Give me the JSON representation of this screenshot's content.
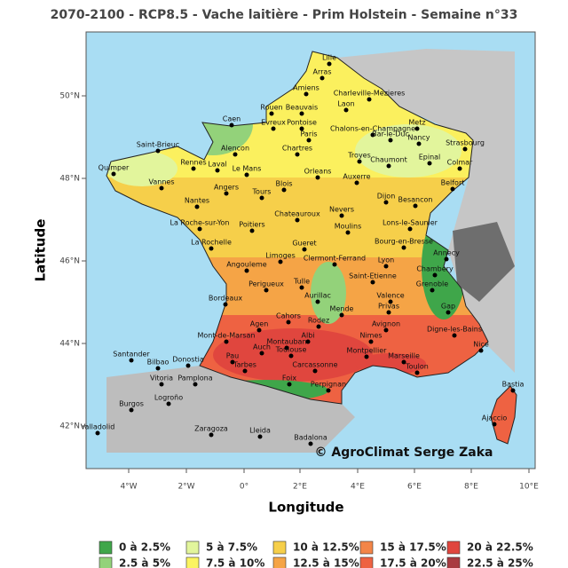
{
  "title": "2070-2100 - RCP8.5 - Vache laitière - Prim Holstein - Semaine n°33",
  "axes": {
    "x_label": "Longitude",
    "y_label": "Latitude",
    "x_ticks": [
      "4°W",
      "2°W",
      "0°",
      "2°E",
      "4°E",
      "6°E",
      "8°E",
      "10°E"
    ],
    "y_ticks": [
      "42°N",
      "44°N",
      "46°N",
      "48°N",
      "50°N"
    ]
  },
  "cities": [
    "Lille",
    "Arras",
    "Amiens",
    "Charleville-Mezieres",
    "Laon",
    "Caen",
    "Rouen",
    "Beauvais",
    "Evreux",
    "Pontoise",
    "Paris",
    "Chalons-en-Champagne",
    "Metz",
    "Bar-le-Duc",
    "Nancy",
    "Strasbourg",
    "Saint-Brieuc",
    "Alencon",
    "Chartres",
    "Troyes",
    "Chaumont",
    "Epinal",
    "Colmar",
    "Quimper",
    "Rennes",
    "Laval",
    "Le Mans",
    "Orleans",
    "Auxerre",
    "Vannes",
    "Blois",
    "Angers",
    "Tours",
    "Belfort",
    "Dijon",
    "Besancon",
    "Nantes",
    "Nevers",
    "Chateauroux",
    "Lons-le-Saunier",
    "La Roche-sur-Yon",
    "Poitiers",
    "Moulins",
    "Bourg-en-Bresse",
    "Gueret",
    "La Rochelle",
    "Annecy",
    "Limoges",
    "Clermont-Ferrand",
    "Lyon",
    "Angouleme",
    "Chambery",
    "Saint-Etienne",
    "Grenoble",
    "Tulle",
    "Perigueux",
    "Valence",
    "Aurillac",
    "Bordeaux",
    "Privas",
    "Gap",
    "Mende",
    "Cahors",
    "Rodez",
    "Agen",
    "Digne-les-Bains",
    "Nice",
    "Mont-de-Marsan",
    "Albi",
    "Nimes",
    "Avignon",
    "Montauban",
    "Auch",
    "Toulouse",
    "Montpellier",
    "Marseille",
    "Toulon",
    "Pau",
    "Tarbes",
    "Carcassonne",
    "Foix",
    "Perpignan",
    "Santander",
    "Bilbao",
    "Donostia",
    "Vitoria",
    "Pamplona",
    "Burgos",
    "Logroño",
    "Bastia",
    "Ajaccio",
    "Zaragoza",
    "Valladolid",
    "Lleida",
    "Badalona"
  ],
  "credit": "© AgroClimat Serge Zaka",
  "legend": [
    {
      "label": "0 à 2.5%",
      "color": "#3fa64a"
    },
    {
      "label": "5 à 7.5%",
      "color": "#e2f59c"
    },
    {
      "label": "10 à 12.5%",
      "color": "#f6cf4a"
    },
    {
      "label": "15 à 17.5%",
      "color": "#f38548"
    },
    {
      "label": "20 à 22.5%",
      "color": "#e0463e"
    },
    {
      "label": "2.5 à 5%",
      "color": "#93d27a"
    },
    {
      "label": "7.5 à 10%",
      "color": "#fbf460"
    },
    {
      "label": "12.5 à 15%",
      "color": "#f5a446"
    },
    {
      "label": "17.5 à 20%",
      "color": "#ee6242"
    },
    {
      "label": "22.5 à 25%",
      "color": "#a83a40"
    }
  ]
}
